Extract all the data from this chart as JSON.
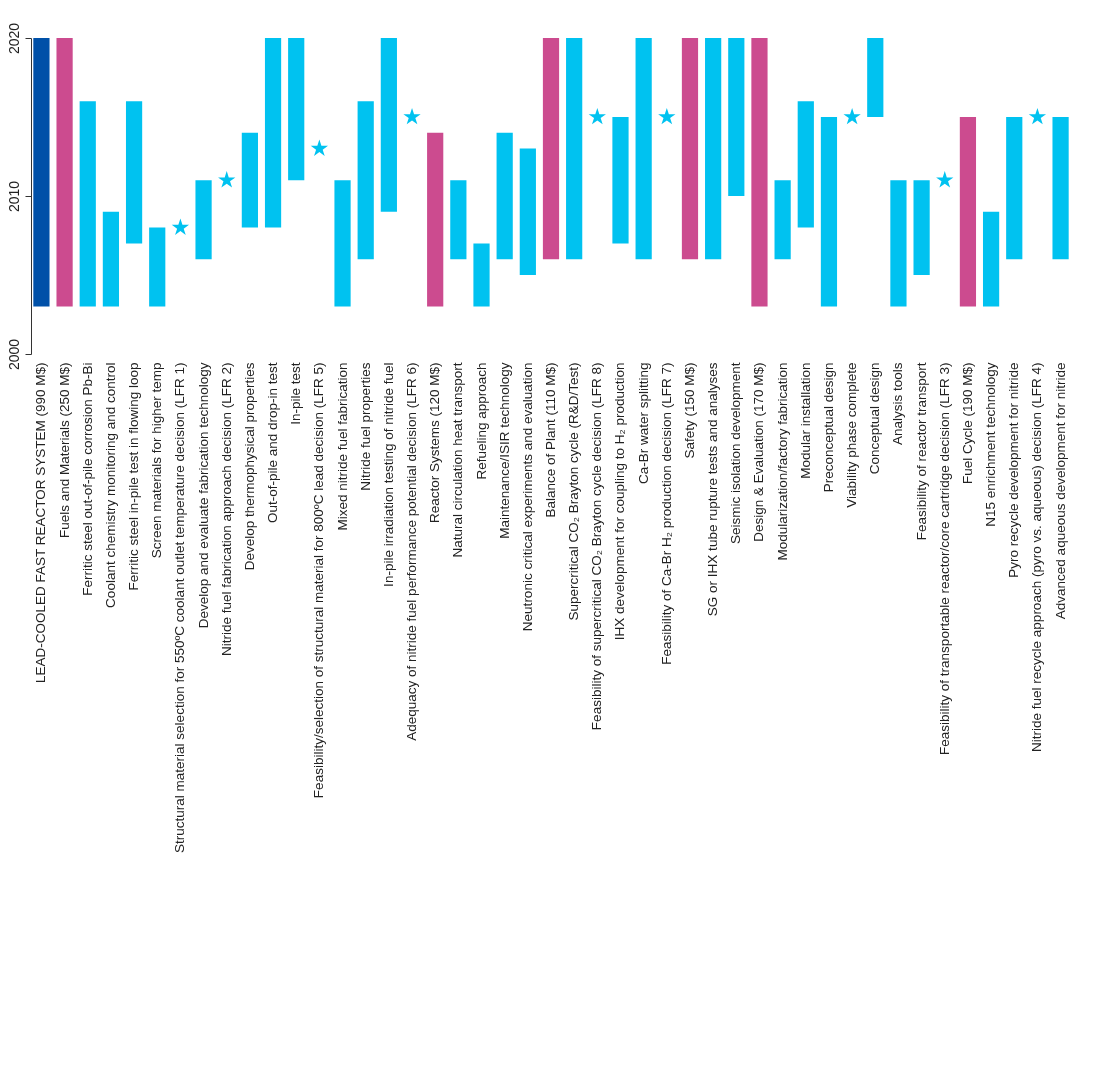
{
  "chart_data": {
    "type": "bar",
    "categories": [
      "LEAD-COOLED FAST REACTOR SYSTEM (990 M$)",
      "Fuels and Materials (250 M$)",
      "Ferritic steel out-of-pile corrosion Pb-Bi",
      "Coolant chemistry monitoring and control",
      "Ferritic steel in-pile test in flowing loop",
      "Screen materials for higher temp",
      "Structural material selection for 550ºC coolant outlet temperature decision (LFR 1)",
      "Develop and evaluate fabrication technology",
      "Nitride fuel fabrication approach decision (LFR 2)",
      "Develop thermophysical properties",
      "Out-of-pile and drop-in test",
      "In-pile test",
      "Feasibility/selection of structural material for 800ºC lead decision (LFR 5)",
      "Mixed nitride fuel fabrication",
      "Nitride fuel properties",
      "In-pile irradiation testing of nitride fuel",
      "Adequacy of nitride fuel performance potential decision (LFR 6)",
      "Reactor Systems (120 M$)",
      "Natural circulation heat transport",
      "Refueling approach",
      "Maintenance/ISIR technology",
      "Neutronic critical experiments and evaluation",
      "Balance of Plant (110 M$)",
      "Supercritical CO₂ Brayton cycle (R&D/Test)",
      "Feasibility of supercritical CO₂ Brayton cycle decision (LFR 8)",
      "IHX development for coupling to H₂ production",
      "Ca-Br water splitting",
      "Feasibility of Ca-Br H₂ production decision (LFR 7)",
      "Safety (150 M$)",
      "SG or IHX tube rupture tests and analyses",
      "Seismic isolation development",
      "Design & Evaluation (170 M$)",
      "Modularization/factory fabrication",
      "Modular installation",
      "Preconceptual design",
      "Viability phase complete",
      "Conceptual design",
      "Analysis tools",
      "Feasibility of reactor transport",
      "Feasibility of transportable reactor/core cartridge decision (LFR 3)",
      "Fuel Cycle (190 M$)",
      "N15 enrichment technology",
      "Pyro recycle development for nitride",
      "Nitride fuel recycle approach (pyro vs. aqueous) decision (LFR 4)",
      "Advanced aqueous development for nitride"
    ],
    "series": [
      {
        "base": [
          2003,
          2003,
          2003,
          2003,
          2007,
          2003,
          null,
          2006,
          null,
          2008,
          2008,
          2011,
          null,
          2003,
          2006,
          2009,
          null,
          2003,
          2006,
          2003,
          2006,
          2005,
          2006,
          2006,
          null,
          2007,
          2006,
          null,
          2006,
          2006,
          2010,
          2003,
          2006,
          2008,
          2003,
          null,
          2015,
          2003,
          2005,
          null,
          2003,
          2003,
          2006,
          null,
          2006
        ],
        "values": [
          17,
          17,
          13,
          6,
          9,
          5,
          null,
          5,
          null,
          6,
          12,
          9,
          null,
          8,
          10,
          11,
          null,
          11,
          5,
          4,
          8,
          8,
          14,
          14,
          null,
          8,
          14,
          null,
          14,
          14,
          10,
          17,
          5,
          8,
          12,
          null,
          5,
          8,
          6,
          null,
          12,
          6,
          9,
          null,
          9
        ],
        "colors": [
          "#0050a8",
          "#cc4b8f",
          "#00c2f0",
          "#00c2f0",
          "#00c2f0",
          "#00c2f0",
          null,
          "#00c2f0",
          null,
          "#00c2f0",
          "#00c2f0",
          "#00c2f0",
          null,
          "#00c2f0",
          "#00c2f0",
          "#00c2f0",
          null,
          "#cc4b8f",
          "#00c2f0",
          "#00c2f0",
          "#00c2f0",
          "#00c2f0",
          "#cc4b8f",
          "#00c2f0",
          null,
          "#00c2f0",
          "#00c2f0",
          null,
          "#cc4b8f",
          "#00c2f0",
          "#00c2f0",
          "#cc4b8f",
          "#00c2f0",
          "#00c2f0",
          "#00c2f0",
          null,
          "#00c2f0",
          "#00c2f0",
          "#00c2f0",
          null,
          "#cc4b8f",
          "#00c2f0",
          "#00c2f0",
          null,
          "#00c2f0"
        ]
      },
      {
        "type": "scatter",
        "marker": "star",
        "color": "#00c2f0",
        "x": [
          "Structural material selection for 550ºC coolant outlet temperature decision (LFR 1)",
          "Nitride fuel fabrication approach decision (LFR 2)",
          "Feasibility/selection of structural material for 800ºC lead decision (LFR 5)",
          "Adequacy of nitride fuel performance potential decision (LFR 6)",
          "Feasibility of supercritical CO₂ Brayton cycle decision (LFR 8)",
          "Feasibility of Ca-Br H₂ production decision (LFR 7)",
          "Viability phase complete",
          "Feasibility of transportable reactor/core cartridge decision (LFR 3)",
          "Nitride fuel recycle approach (pyro vs. aqueous) decision (LFR 4)"
        ],
        "values": [
          2008,
          2011,
          2013,
          2015,
          2015,
          2015,
          2015,
          2011,
          2015
        ]
      }
    ],
    "ylim": [
      2000,
      2020
    ],
    "yticks": [
      2000,
      2010,
      2020
    ],
    "grid": false
  }
}
